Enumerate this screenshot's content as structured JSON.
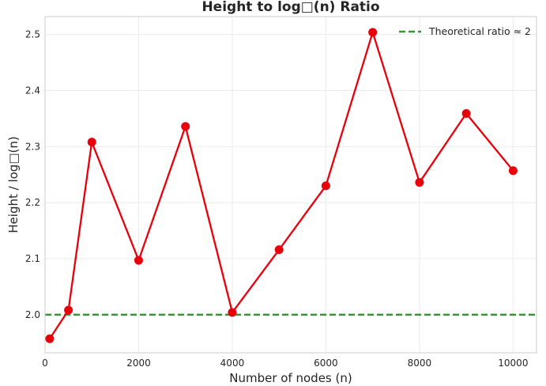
{
  "chart_data": {
    "type": "line",
    "title": "Height to log□(n) Ratio",
    "xlabel": "Number of nodes (n)",
    "ylabel": "Height / log□(n)",
    "xlim": [
      0,
      10500
    ],
    "ylim": [
      1.932,
      2.532
    ],
    "xticks": [
      0,
      2000,
      4000,
      6000,
      8000,
      10000
    ],
    "yticks": [
      2.0,
      2.1,
      2.2,
      2.3,
      2.4,
      2.5
    ],
    "xtick_labels": [
      "0",
      "2000",
      "4000",
      "6000",
      "8000",
      "10000"
    ],
    "ytick_labels": [
      "2.0",
      "2.1",
      "2.2",
      "2.3",
      "2.4",
      "2.5"
    ],
    "grid": true,
    "legend_position": "top-right",
    "series": [
      {
        "color": "#e8000b",
        "marker": "circle",
        "x": [
          100,
          500,
          1000,
          2000,
          3000,
          4000,
          5000,
          6000,
          7000,
          8000,
          9000,
          10000
        ],
        "y": [
          1.957,
          2.008,
          2.308,
          2.097,
          2.336,
          2.004,
          2.116,
          2.23,
          2.504,
          2.236,
          2.359,
          2.257
        ]
      }
    ],
    "reference_lines": [
      {
        "name": "Theoretical ratio ≈ 2",
        "y": 2.0,
        "color": "#3a923a",
        "style": "dashed"
      }
    ]
  }
}
